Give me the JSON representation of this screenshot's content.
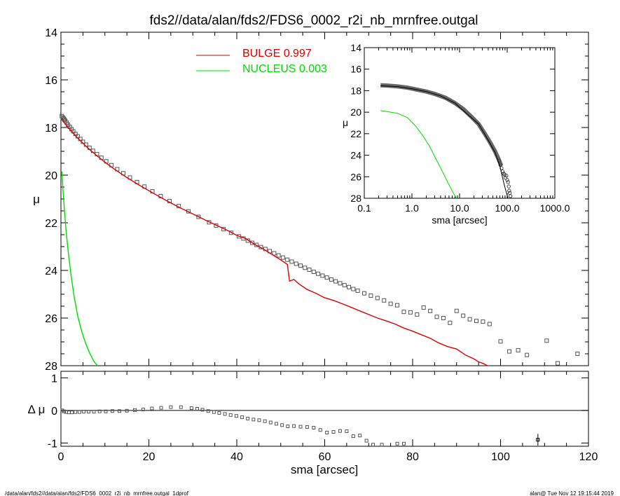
{
  "title": "fds2//data/alan/fds2/FDS6_0002_r2i_nb_mrnfree.outgal",
  "footer": {
    "left": "/data/alan/fds2//data/alan/fds2/FDS6_0002_r2i_nb_mrnfree.outgal_1dprof",
    "right": "alan@  Tue Nov 12 19:15:44 2019"
  },
  "colors": {
    "bulge": "#e00000",
    "nucleus": "#00dd00",
    "data": "#555555",
    "axis": "#000000"
  },
  "chart_data": [
    {
      "id": "main",
      "type": "scatter",
      "xlabel": "",
      "ylabel": "μ",
      "xlim": [
        0,
        120
      ],
      "ylim": [
        28,
        14
      ],
      "yticks": [
        "14",
        "16",
        "18",
        "20",
        "22",
        "24",
        "26",
        "28"
      ],
      "legend": [
        {
          "label": "BULGE",
          "value": "0.997",
          "color": "#e00000"
        },
        {
          "label": "NUCLEUS",
          "value": "0.003",
          "color": "#00dd00"
        }
      ],
      "legend_placement": "top-center",
      "series": [
        {
          "name": "data",
          "style": "open-squares",
          "x": [
            0.2,
            0.4,
            0.6,
            0.8,
            1.0,
            1.3,
            1.6,
            2.0,
            2.4,
            2.8,
            3.3,
            3.8,
            4.4,
            5.0,
            5.7,
            6.5,
            7.3,
            8.2,
            9.2,
            10.3,
            11.5,
            12.8,
            14.2,
            15.7,
            17.3,
            19.0,
            20.8,
            22.7,
            24.7,
            26.8,
            29.0,
            31.3,
            33.7,
            35.3,
            37.0,
            38.7,
            40.5,
            41.5,
            42.5,
            43.5,
            44.5,
            45.5,
            46.5,
            47.5,
            48.5,
            49.5,
            50.5,
            51.5,
            52.5,
            53.5,
            54.5,
            55.5,
            56.5,
            57.5,
            58.5,
            59.5,
            60.5,
            61.5,
            62.5,
            63.5,
            64.5,
            65.5,
            66.5,
            67.5,
            69.0,
            70.5,
            72.0,
            73.5,
            75.0,
            76.5,
            78.0,
            79.5,
            81.0,
            82.5,
            84.0,
            85.5,
            87.0,
            88.5,
            90.0,
            91.5,
            93.0,
            94.5,
            96.0,
            97.5,
            100.0,
            102.0,
            104.0,
            106.0,
            110.5,
            113.0,
            117.5
          ],
          "y": [
            17.52,
            17.57,
            17.62,
            17.67,
            17.72,
            17.8,
            17.88,
            17.97,
            18.07,
            18.16,
            18.27,
            18.37,
            18.48,
            18.6,
            18.72,
            18.85,
            18.98,
            19.12,
            19.27,
            19.42,
            19.58,
            19.75,
            19.92,
            20.1,
            20.29,
            20.48,
            20.68,
            20.88,
            21.09,
            21.3,
            21.52,
            21.75,
            21.98,
            22.12,
            22.27,
            22.42,
            22.57,
            22.66,
            22.75,
            22.84,
            22.93,
            23.02,
            23.1,
            23.19,
            23.28,
            23.37,
            23.46,
            23.55,
            23.63,
            23.72,
            23.8,
            23.89,
            23.97,
            24.06,
            24.14,
            24.22,
            24.3,
            24.38,
            24.46,
            24.54,
            24.62,
            24.7,
            24.78,
            24.85,
            24.96,
            25.06,
            25.16,
            25.26,
            25.4,
            25.46,
            25.74,
            25.76,
            25.85,
            25.56,
            25.7,
            25.95,
            26.0,
            26.2,
            25.7,
            25.9,
            26.05,
            26.12,
            26.15,
            26.25,
            26.98,
            27.4,
            27.35,
            27.55,
            26.95,
            27.9,
            27.5
          ]
        },
        {
          "name": "BULGE",
          "style": "line",
          "color": "#e00000",
          "x": [
            0.2,
            0.5,
            1.0,
            1.5,
            2.0,
            3.0,
            4.0,
            5.0,
            6.0,
            8.0,
            10.0,
            12.0,
            15.0,
            18.0,
            21.0,
            24.0,
            27.0,
            30.0,
            33.0,
            36.0,
            38.0,
            40.0,
            42.0,
            44.0,
            46.0,
            48.0,
            50.0,
            51.5,
            52.0,
            53.0,
            54.0,
            56.0,
            58.0,
            60.0,
            62.0,
            64.0,
            66.0,
            68.0,
            70.0,
            72.0,
            74.0,
            76.0,
            78.0,
            80.0,
            82.0,
            84.0,
            86.0,
            88.0,
            90.0,
            92.0,
            94.0,
            95.0,
            96.0,
            97.0,
            98.0
          ],
          "y": [
            17.62,
            17.72,
            17.85,
            17.97,
            18.07,
            18.28,
            18.48,
            18.66,
            18.84,
            19.16,
            19.46,
            19.73,
            20.1,
            20.44,
            20.76,
            21.07,
            21.36,
            21.63,
            21.9,
            22.16,
            22.33,
            22.53,
            22.66,
            22.9,
            23.1,
            23.33,
            23.56,
            23.75,
            24.45,
            24.38,
            24.55,
            24.8,
            24.96,
            25.15,
            25.26,
            25.4,
            25.55,
            25.7,
            25.85,
            26.0,
            26.12,
            26.25,
            26.42,
            26.55,
            26.7,
            26.85,
            27.05,
            27.2,
            27.3,
            27.55,
            27.72,
            27.84,
            27.9,
            28.0,
            28.08
          ]
        },
        {
          "name": "NUCLEUS",
          "style": "line",
          "color": "#00dd00",
          "x": [
            0.2,
            0.3,
            0.5,
            0.8,
            1.2,
            1.7,
            2.3,
            3.0,
            3.8,
            4.7,
            5.6,
            6.6,
            7.6,
            8.6
          ],
          "y": [
            19.85,
            20.1,
            20.7,
            21.5,
            22.4,
            23.3,
            24.2,
            25.1,
            25.9,
            26.55,
            27.05,
            27.5,
            27.85,
            28.05
          ]
        }
      ]
    },
    {
      "id": "residual",
      "type": "scatter",
      "xlabel": "sma [arcsec]",
      "ylabel": "Δ μ",
      "xlim": [
        0,
        120
      ],
      "ylim": [
        -1.1,
        1.2
      ],
      "xticks": [
        "0",
        "20",
        "40",
        "60",
        "80",
        "100",
        "120"
      ],
      "yticks": [
        "1",
        "0",
        "-1"
      ],
      "reference_line": 0,
      "series": [
        {
          "name": "residual",
          "style": "open-squares",
          "x": [
            0.3,
            0.7,
            1.2,
            1.8,
            2.5,
            3.3,
            4.2,
            5.2,
            6.3,
            7.5,
            8.8,
            10.2,
            11.7,
            13.3,
            15.0,
            16.8,
            18.7,
            20.7,
            22.8,
            25.0,
            27.3,
            29.7,
            31.0,
            32.2,
            33.5,
            34.8,
            36.0,
            37.3,
            38.6,
            39.9,
            41.2,
            42.5,
            43.8,
            45.1,
            46.4,
            47.7,
            49.0,
            50.3,
            51.6,
            53.0,
            54.5,
            56.0,
            57.5,
            59.0,
            60.5,
            62.0,
            63.5,
            65.0,
            66.5,
            68.0,
            69.5,
            71.0,
            73.0,
            76.5,
            78.0
          ],
          "y": [
            0.0,
            -0.03,
            -0.05,
            -0.06,
            -0.06,
            -0.05,
            -0.05,
            -0.04,
            -0.04,
            -0.04,
            -0.03,
            -0.03,
            -0.02,
            -0.02,
            -0.01,
            0.01,
            0.03,
            0.06,
            0.08,
            0.1,
            0.1,
            0.07,
            0.05,
            0.02,
            -0.02,
            -0.05,
            -0.08,
            -0.11,
            -0.14,
            -0.17,
            -0.21,
            -0.25,
            -0.28,
            -0.3,
            -0.33,
            -0.37,
            -0.41,
            -0.45,
            -0.49,
            -0.48,
            -0.5,
            -0.51,
            -0.53,
            -0.6,
            -0.68,
            -0.66,
            -0.63,
            -0.64,
            -0.79,
            -0.77,
            -0.93,
            -1.05,
            -1.05,
            -1.02,
            -1.02
          ]
        },
        {
          "name": "errorbar",
          "style": "point-errorbar",
          "x": [
            108.5
          ],
          "y": [
            -0.9
          ],
          "err": [
            0.18
          ]
        }
      ]
    },
    {
      "id": "inset",
      "type": "scatter",
      "log_x": true,
      "xlabel": "sma [arcsec]",
      "ylabel": "μ",
      "xlim": [
        0.1,
        1000.0
      ],
      "ylim": [
        28,
        14
      ],
      "xticks": [
        "0.1",
        "1.0",
        "10.0",
        "100.0",
        "1000.0"
      ],
      "yticks": [
        "14",
        "16",
        "18",
        "20",
        "22",
        "24",
        "26",
        "28"
      ],
      "series": [
        {
          "name": "data",
          "style": "thick-band",
          "x": [
            0.22,
            0.3,
            0.5,
            0.8,
            1.2,
            2.0,
            3.0,
            5.0,
            8.0,
            12.0,
            18.0,
            25.0,
            35.0,
            45.0,
            55.0,
            65.0,
            75.0
          ],
          "y": [
            17.5,
            17.52,
            17.6,
            17.72,
            17.88,
            18.08,
            18.3,
            18.65,
            19.15,
            19.72,
            20.45,
            21.1,
            22.1,
            22.9,
            23.6,
            24.3,
            25.0
          ]
        },
        {
          "name": "data-outer",
          "style": "open-circles",
          "x": [
            68.0,
            72.0,
            76.0,
            80.0,
            84.0,
            88.0,
            92.0,
            96.0,
            100.0,
            104.0,
            108.0,
            110.0,
            113.0,
            117.0
          ],
          "y": [
            24.5,
            24.9,
            25.2,
            25.5,
            25.7,
            25.8,
            26.1,
            25.9,
            26.3,
            26.5,
            26.9,
            27.3,
            27.5,
            27.8
          ]
        },
        {
          "name": "BULGE",
          "style": "line",
          "color": "#000000",
          "x": [
            0.22,
            0.5,
            1.0,
            2.0,
            4.0,
            8.0,
            15.0,
            25.0,
            40.0,
            55.0,
            70.0,
            85.0,
            95.0,
            105.0
          ],
          "y": [
            17.55,
            17.62,
            17.82,
            18.08,
            18.48,
            19.16,
            20.23,
            21.1,
            22.6,
            23.7,
            25.0,
            26.6,
            27.4,
            28.05
          ]
        },
        {
          "name": "NUCLEUS",
          "style": "line",
          "color": "#00dd00",
          "x": [
            0.22,
            0.5,
            0.8,
            1.2,
            1.7,
            2.3,
            3.0,
            3.8,
            4.7,
            5.6,
            6.6,
            7.6,
            8.6
          ],
          "y": [
            19.85,
            20.1,
            20.5,
            21.3,
            22.2,
            23.1,
            24.1,
            25.0,
            25.8,
            26.5,
            27.1,
            27.6,
            28.0
          ]
        }
      ]
    }
  ]
}
